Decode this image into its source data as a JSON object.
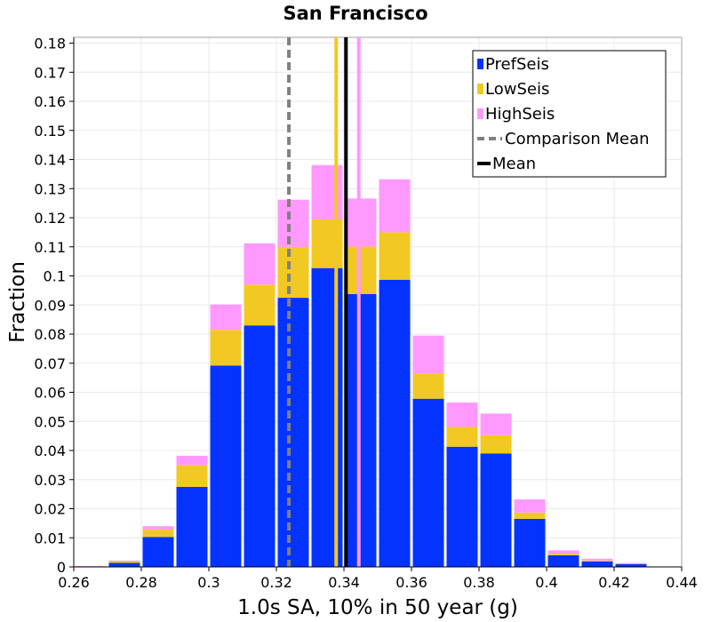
{
  "chart_data": {
    "type": "bar",
    "stacked": true,
    "title": "San Francisco",
    "xlabel": "1.0s SA, 10% in 50 year (g)",
    "ylabel": "Fraction",
    "xlim": [
      0.26,
      0.44
    ],
    "ylim": [
      0,
      0.182
    ],
    "x_ticks": [
      "0.26",
      "0.28",
      "0.3",
      "0.32",
      "0.34",
      "0.36",
      "0.38",
      "0.4",
      "0.42",
      "0.44"
    ],
    "y_ticks": [
      "0",
      "0.01",
      "0.02",
      "0.03",
      "0.04",
      "0.05",
      "0.06",
      "0.07",
      "0.08",
      "0.09",
      "0.1",
      "0.11",
      "0.12",
      "0.13",
      "0.14",
      "0.15",
      "0.16",
      "0.17",
      "0.18"
    ],
    "grid": true,
    "legend_position": "top-right",
    "bin_width": 0.01,
    "bin_starts": [
      0.26,
      0.27,
      0.28,
      0.29,
      0.3,
      0.31,
      0.32,
      0.33,
      0.34,
      0.35,
      0.36,
      0.37,
      0.38,
      0.39,
      0.4,
      0.41,
      0.42
    ],
    "series": [
      {
        "name": "PrefSeis",
        "color": "#0433ff",
        "values": [
          0.0,
          0.0014,
          0.0103,
          0.0275,
          0.0692,
          0.083,
          0.0925,
          0.1027,
          0.0938,
          0.0987,
          0.0578,
          0.0413,
          0.039,
          0.0165,
          0.004,
          0.0019,
          0.001
        ]
      },
      {
        "name": "LowSeis",
        "color": "#f2c923",
        "values": [
          0.0,
          0.0006,
          0.0025,
          0.0075,
          0.0123,
          0.014,
          0.0175,
          0.0167,
          0.0163,
          0.0163,
          0.0085,
          0.0068,
          0.0063,
          0.0022,
          0.0005,
          0.0003,
          0.0001
        ]
      },
      {
        "name": "HighSeis",
        "color": "#ff99ff",
        "values": [
          0.0003,
          0.0002,
          0.0012,
          0.0032,
          0.0087,
          0.0142,
          0.0162,
          0.0187,
          0.0165,
          0.0182,
          0.0132,
          0.0084,
          0.0074,
          0.0045,
          0.0012,
          0.0006,
          0.0002
        ]
      }
    ],
    "vertical_lines": [
      {
        "name": "Comparison Mean",
        "x": 0.3237,
        "color": "#808080",
        "style": "dashed"
      },
      {
        "name": "Mean",
        "x": 0.3406,
        "color": "#000000",
        "style": "solid"
      },
      {
        "name": "LowSeis mean",
        "x": 0.3377,
        "color": "#f2c923",
        "style": "solid",
        "in_legend": false
      },
      {
        "name": "HighSeis mean",
        "x": 0.3444,
        "color": "#ff99ff",
        "style": "solid",
        "in_legend": false
      }
    ],
    "legend": [
      {
        "label": "PrefSeis",
        "color": "#0433ff",
        "kind": "box"
      },
      {
        "label": "LowSeis",
        "color": "#f2c923",
        "kind": "box"
      },
      {
        "label": "HighSeis",
        "color": "#ff99ff",
        "kind": "box"
      },
      {
        "label": "Comparison Mean",
        "color": "#808080",
        "kind": "dashed-line"
      },
      {
        "label": "Mean",
        "color": "#000000",
        "kind": "line"
      }
    ]
  }
}
